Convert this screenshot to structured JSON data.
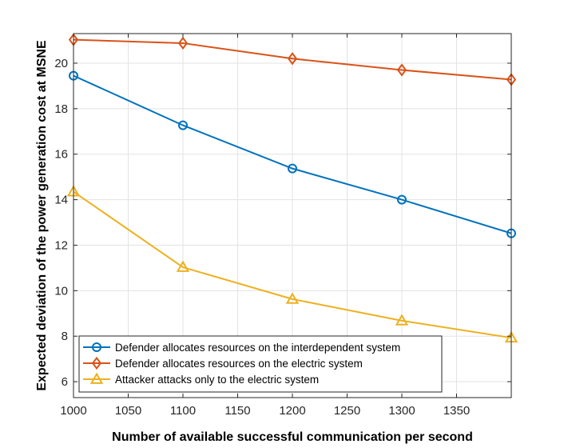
{
  "chart_data": {
    "type": "line",
    "title": "",
    "xlabel": "Number of available successful communication per second",
    "ylabel": "Expected deviation of the power generation cost at MSNE",
    "xlim": [
      1000,
      1400
    ],
    "ylim": [
      5.3,
      21.3
    ],
    "xticks": [
      1000,
      1050,
      1100,
      1150,
      1200,
      1250,
      1300,
      1350
    ],
    "yticks": [
      6,
      8,
      10,
      12,
      14,
      16,
      18,
      20
    ],
    "grid": true,
    "legend_position": "bottom-left",
    "x": [
      1000,
      1100,
      1200,
      1300,
      1400
    ],
    "series": [
      {
        "name": "Defender allocates resources on the interdependent system",
        "values": [
          19.45,
          17.27,
          15.37,
          14.0,
          12.52
        ],
        "color": "#0072BD",
        "marker": "circle"
      },
      {
        "name": "Defender allocates resources on the electric system",
        "values": [
          21.03,
          20.88,
          20.2,
          19.7,
          19.28
        ],
        "color": "#D95319",
        "marker": "diamond"
      },
      {
        "name": "Attacker attacks only to the electric system",
        "values": [
          14.35,
          11.03,
          9.63,
          8.68,
          7.93
        ],
        "color": "#EDB120",
        "marker": "triangle"
      }
    ]
  }
}
